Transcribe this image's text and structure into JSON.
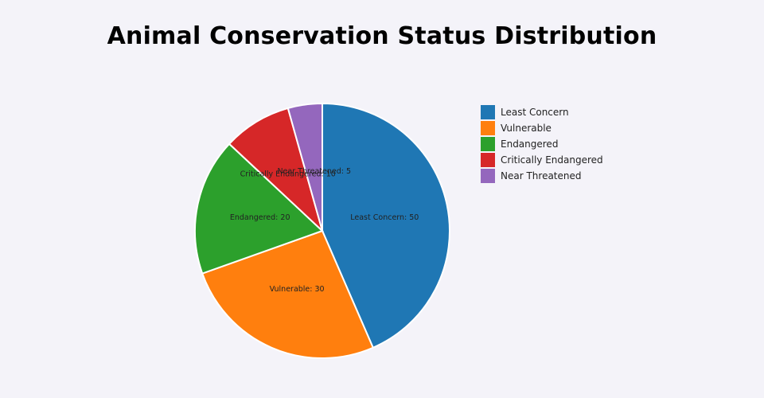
{
  "chart_data": {
    "type": "pie",
    "title": "Animal Conservation Status Distribution",
    "slices": [
      {
        "label": "Least Concern",
        "value": 50,
        "color": "#1f77b4"
      },
      {
        "label": "Vulnerable",
        "value": 30,
        "color": "#ff7f0e"
      },
      {
        "label": "Endangered",
        "value": 20,
        "color": "#2ca02c"
      },
      {
        "label": "Critically Endangered",
        "value": 10,
        "color": "#d62728"
      },
      {
        "label": "Near Threatened",
        "value": 5,
        "color": "#9467bd"
      }
    ],
    "legend_position": "right"
  }
}
